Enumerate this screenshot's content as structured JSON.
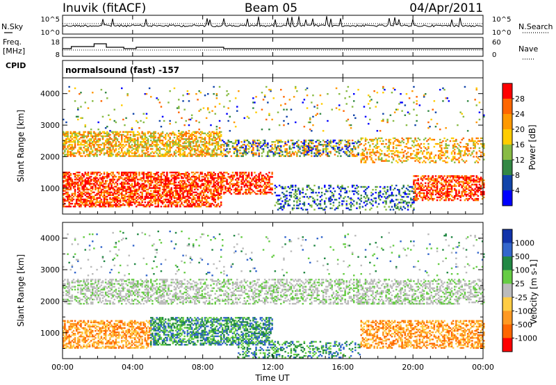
{
  "header": {
    "station": "Inuvik (fitACF)",
    "beam": "Beam 05",
    "date": "04/Apr/2011"
  },
  "noise_panel": {
    "left_label": "N.Sky",
    "right_label": "N.Search",
    "left_ticks": [
      "10^5",
      "10^0"
    ],
    "right_ticks": [
      "10^5",
      "10^0"
    ]
  },
  "freq_panel": {
    "left_label_1": "Freq.",
    "left_label_2": "[MHz]",
    "right_label": "Nave",
    "left_ticks": [
      "18",
      "8"
    ],
    "right_ticks": [
      "60",
      "0"
    ]
  },
  "cpid": {
    "label": "CPID",
    "value": "normalsound (fast) -157"
  },
  "chart_data": [
    {
      "type": "heatmap",
      "panel": "power",
      "ylabel": "Slant Range [km]",
      "yticks": [
        "1000",
        "2000",
        "3000",
        "4000"
      ],
      "ylim": [
        180,
        4500
      ],
      "xlim": [
        0,
        24
      ],
      "colorbar_label": "Power [dB]",
      "colorbar_ticks": [
        "28",
        "24",
        "20",
        "16",
        "12",
        "8",
        "4"
      ],
      "colorbar_colors": [
        "#ff0000",
        "#ff6600",
        "#ff9900",
        "#ffcc00",
        "#88bb44",
        "#338844",
        "#1144aa",
        "#0000ff"
      ]
    },
    {
      "type": "heatmap",
      "panel": "velocity",
      "ylabel": "Slant Range [km]",
      "yticks": [
        "1000",
        "2000",
        "3000",
        "4000"
      ],
      "ylim": [
        180,
        4500
      ],
      "xlim": [
        0,
        24
      ],
      "xlabel": "Time UT",
      "xticks": [
        "00:00",
        "04:00",
        "08:00",
        "12:00",
        "16:00",
        "20:00",
        "00:00"
      ],
      "colorbar_label": "Velocity [m s-1]",
      "colorbar_ticks": [
        "1000",
        "500",
        "100",
        "25",
        "-25",
        "-100",
        "-500",
        "-1000"
      ],
      "colorbar_colors": [
        "#1133aa",
        "#3366cc",
        "#228844",
        "#66cc44",
        "#bbbbbb",
        "#ffcc44",
        "#ff9922",
        "#ff6600",
        "#ff0000"
      ]
    }
  ]
}
